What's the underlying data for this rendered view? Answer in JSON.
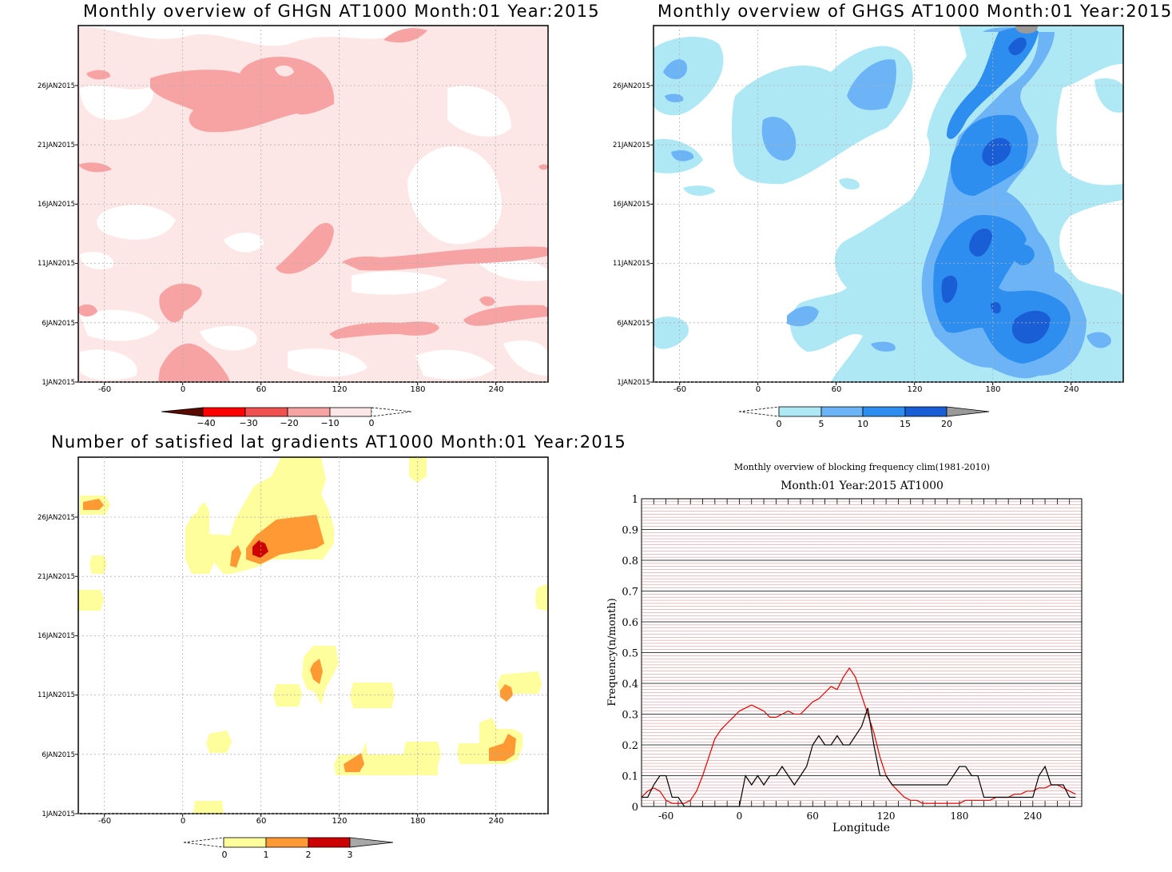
{
  "panels": {
    "ghgn": {
      "title": "Monthly overview of GHGN AT1000 Month:01 Year:2015",
      "y_ticks": [
        "1JAN2015",
        "6JAN2015",
        "11JAN2015",
        "16JAN2015",
        "21JAN2015",
        "26JAN2015"
      ],
      "x_ticks": [
        "-60",
        "0",
        "60",
        "120",
        "180",
        "240"
      ],
      "colorbar_labels": [
        "−40",
        "−30",
        "−20",
        "−10",
        "0"
      ],
      "colors": [
        "#5a0a00",
        "#ff0000",
        "#f05050",
        "#f7a3a3",
        "#fde7e6"
      ]
    },
    "ghgs": {
      "title": "Monthly overview of GHGS AT1000 Month:01 Year:2015",
      "y_ticks": [
        "1JAN2015",
        "6JAN2015",
        "11JAN2015",
        "16JAN2015",
        "21JAN2015",
        "26JAN2015"
      ],
      "x_ticks": [
        "-60",
        "0",
        "60",
        "120",
        "180",
        "240"
      ],
      "colorbar_labels": [
        "0",
        "5",
        "10",
        "15",
        "20"
      ],
      "colors": [
        "#aee8f5",
        "#6cb4f5",
        "#2e8ef0",
        "#1a5ed6",
        "#9a9a9a"
      ]
    },
    "gradients": {
      "title": "Number of satisfied lat gradients AT1000 Month:01 Year:2015",
      "y_ticks": [
        "1JAN2015",
        "6JAN2015",
        "11JAN2015",
        "16JAN2015",
        "21JAN2015",
        "26JAN2015"
      ],
      "x_ticks": [
        "-60",
        "0",
        "60",
        "120",
        "180",
        "240"
      ],
      "colorbar_labels": [
        "0",
        "1",
        "2",
        "3"
      ],
      "colors": [
        "#fefe9c",
        "#ff9933",
        "#cc0000",
        "#a8a8a8"
      ]
    },
    "frequency": {
      "title": "Monthly overview of blocking frequency clim(1981-2010)",
      "subtitle": "Month:01 Year:2015  AT1000"
    }
  },
  "chart_data": [
    {
      "type": "heatmap",
      "title": "Monthly overview of GHGN AT1000 Month:01 Year:2015",
      "x_ticks": [
        -60,
        0,
        60,
        120,
        180,
        240
      ],
      "y_ticks": [
        "1JAN2015",
        "6JAN2015",
        "11JAN2015",
        "16JAN2015",
        "21JAN2015",
        "26JAN2015"
      ],
      "xlim": [
        -80,
        280
      ],
      "levels": [
        -40,
        -30,
        -20,
        -10,
        0
      ]
    },
    {
      "type": "heatmap",
      "title": "Monthly overview of GHGS AT1000 Month:01 Year:2015",
      "x_ticks": [
        -60,
        0,
        60,
        120,
        180,
        240
      ],
      "y_ticks": [
        "1JAN2015",
        "6JAN2015",
        "11JAN2015",
        "16JAN2015",
        "21JAN2015",
        "26JAN2015"
      ],
      "xlim": [
        -80,
        280
      ],
      "levels": [
        0,
        5,
        10,
        15,
        20
      ]
    },
    {
      "type": "heatmap",
      "title": "Number of satisfied lat gradients AT1000 Month:01 Year:2015",
      "x_ticks": [
        -60,
        0,
        60,
        120,
        180,
        240
      ],
      "y_ticks": [
        "1JAN2015",
        "6JAN2015",
        "11JAN2015",
        "16JAN2015",
        "21JAN2015",
        "26JAN2015"
      ],
      "xlim": [
        -80,
        280
      ],
      "levels": [
        0,
        1,
        2,
        3
      ]
    },
    {
      "type": "line",
      "title": "Monthly overview of blocking frequency clim(1981-2010)",
      "subtitle": "Month:01 Year:2015  AT1000",
      "xlabel": "Longitude",
      "ylabel": "Frequency(n/month)",
      "xlim": [
        -80,
        280
      ],
      "ylim": [
        0,
        1
      ],
      "x_ticks": [
        -60,
        0,
        60,
        120,
        180,
        240
      ],
      "y_ticks": [
        0,
        0.1,
        0.2,
        0.3,
        0.4,
        0.5,
        0.6,
        0.7,
        0.8,
        0.9,
        1
      ],
      "grid": true,
      "series": [
        {
          "color": "#e00000",
          "x": [
            -80,
            -75,
            -70,
            -65,
            -60,
            -55,
            -50,
            -45,
            -40,
            -35,
            -30,
            -25,
            -20,
            -15,
            -10,
            -5,
            0,
            5,
            10,
            15,
            20,
            25,
            30,
            35,
            40,
            45,
            50,
            55,
            60,
            65,
            70,
            75,
            80,
            85,
            90,
            95,
            100,
            105,
            110,
            115,
            120,
            125,
            130,
            135,
            140,
            145,
            150,
            155,
            160,
            165,
            170,
            175,
            180,
            185,
            190,
            195,
            200,
            205,
            210,
            215,
            220,
            225,
            230,
            235,
            240,
            245,
            250,
            255,
            260,
            265,
            270,
            275
          ],
          "y": [
            0.03,
            0.05,
            0.06,
            0.05,
            0.02,
            0.01,
            0.01,
            0.01,
            0.02,
            0.05,
            0.1,
            0.16,
            0.22,
            0.25,
            0.27,
            0.29,
            0.31,
            0.32,
            0.33,
            0.32,
            0.31,
            0.29,
            0.29,
            0.3,
            0.31,
            0.3,
            0.3,
            0.32,
            0.34,
            0.35,
            0.37,
            0.39,
            0.38,
            0.42,
            0.45,
            0.42,
            0.36,
            0.3,
            0.24,
            0.16,
            0.1,
            0.07,
            0.05,
            0.03,
            0.02,
            0.02,
            0.01,
            0.01,
            0.01,
            0.01,
            0.01,
            0.01,
            0.01,
            0.02,
            0.02,
            0.02,
            0.02,
            0.02,
            0.03,
            0.03,
            0.03,
            0.04,
            0.04,
            0.05,
            0.05,
            0.06,
            0.06,
            0.07,
            0.07,
            0.06,
            0.05,
            0.04
          ]
        },
        {
          "color": "#000000",
          "x": [
            -80,
            -75,
            -70,
            -65,
            -60,
            -55,
            -50,
            -45,
            -40,
            -35,
            -30,
            -25,
            -20,
            -15,
            -10,
            -5,
            0,
            5,
            10,
            15,
            20,
            25,
            30,
            35,
            40,
            45,
            50,
            55,
            60,
            65,
            70,
            75,
            80,
            85,
            90,
            95,
            100,
            105,
            110,
            115,
            120,
            125,
            130,
            135,
            140,
            145,
            150,
            155,
            160,
            165,
            170,
            175,
            180,
            185,
            190,
            195,
            200,
            205,
            210,
            215,
            220,
            225,
            230,
            235,
            240,
            245,
            250,
            255,
            260,
            265,
            270,
            275
          ],
          "y": [
            0.03,
            0.03,
            0.07,
            0.1,
            0.1,
            0.03,
            0.03,
            0.0,
            0.0,
            0.0,
            0.0,
            0.0,
            0.0,
            0.0,
            0.0,
            0.0,
            0.0,
            0.1,
            0.07,
            0.1,
            0.07,
            0.1,
            0.1,
            0.13,
            0.1,
            0.07,
            0.1,
            0.13,
            0.2,
            0.23,
            0.2,
            0.2,
            0.23,
            0.2,
            0.2,
            0.23,
            0.26,
            0.32,
            0.2,
            0.1,
            0.1,
            0.07,
            0.07,
            0.07,
            0.07,
            0.07,
            0.07,
            0.07,
            0.07,
            0.07,
            0.07,
            0.1,
            0.13,
            0.13,
            0.1,
            0.1,
            0.03,
            0.03,
            0.03,
            0.03,
            0.03,
            0.03,
            0.03,
            0.03,
            0.03,
            0.1,
            0.13,
            0.07,
            0.07,
            0.07,
            0.03,
            0.03
          ]
        }
      ]
    }
  ]
}
